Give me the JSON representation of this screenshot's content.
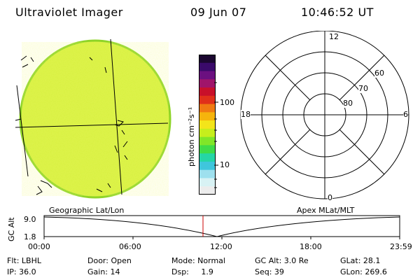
{
  "header": {
    "instrument": "Ultraviolet Imager",
    "date": "09 Jun 07",
    "time": "10:46:52 UT"
  },
  "colorbar": {
    "unit_label": "photon cm⁻²s⁻¹",
    "tick_labels": [
      "100",
      "10"
    ],
    "colors": [
      "#1b0730",
      "#3a0a6a",
      "#6b1080",
      "#a0156a",
      "#c8102a",
      "#e0301a",
      "#f07a12",
      "#f6b40c",
      "#f3e51a",
      "#c6ee1c",
      "#80e628",
      "#3fdc48",
      "#25d6a6",
      "#3fc6dc",
      "#9ee0ee",
      "#d8f2f4",
      "#ececec"
    ]
  },
  "image_panel": {
    "fill_color": "#d6f03c",
    "edge_color": "#8ed428"
  },
  "polar_plot": {
    "hour_labels": [
      "12",
      "18",
      "6",
      "0"
    ],
    "lat_labels": [
      "60",
      "70",
      "80"
    ]
  },
  "timeline": {
    "left_label": "Geographic Lat/Lon",
    "right_label": "Apex MLat/MLT",
    "axis_title": "GC Alt",
    "y_ticks": [
      "9.0",
      "1.8"
    ],
    "x_ticks": [
      "00:00",
      "06:00",
      "12:00",
      "18:00",
      "23:59"
    ],
    "marker_color": "#cc0000"
  },
  "status": {
    "filter": "Flt: LBHL",
    "door": "Door: Open",
    "mode": "Mode: Normal",
    "gc_alt": "GC Alt: 3.0 Re",
    "glat": "GLat:  28.1",
    "ip": "IP: 36.0",
    "gain": "Gain: 14",
    "dsp": "Dsp:     1.9",
    "seq": "Seq: 39",
    "glon": "GLon: 269.6"
  }
}
